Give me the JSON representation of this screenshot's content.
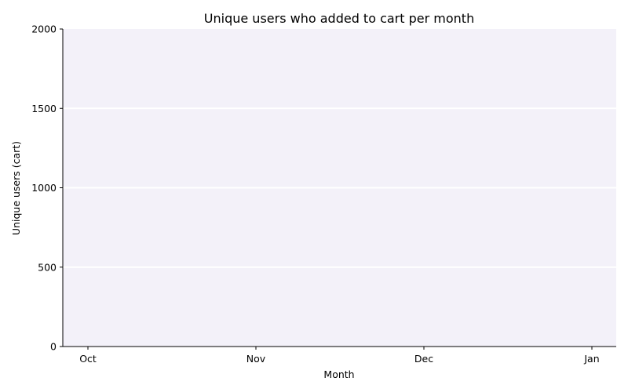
{
  "chart_data": {
    "type": "line",
    "title": "Unique users who added to cart per month",
    "xlabel": "Month",
    "ylabel": "Unique users (cart)",
    "categories": [
      "Oct",
      "Nov",
      "Dec",
      "Jan"
    ],
    "ylim": [
      0,
      2000
    ],
    "yticks": [
      0,
      500,
      1000,
      1500,
      2000
    ],
    "series": [],
    "grid": true,
    "legend": "none",
    "colors": {
      "plot_background": "#f3f1f9",
      "grid": "#ffffff",
      "axis": "#000000",
      "text": "#000000"
    }
  }
}
